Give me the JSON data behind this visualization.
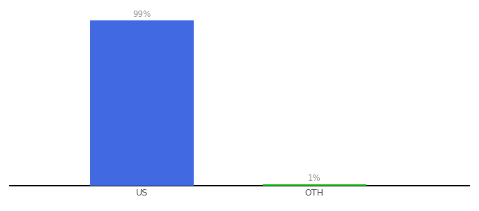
{
  "categories": [
    "US",
    "OTH"
  ],
  "values": [
    99,
    1
  ],
  "bar_colors": [
    "#4169e1",
    "#22cc22"
  ],
  "value_labels": [
    "99%",
    "1%"
  ],
  "background_color": "#ffffff",
  "ylim": [
    0,
    105
  ],
  "bar_width": 0.18,
  "label_fontsize": 8.5,
  "tick_fontsize": 9,
  "axis_line_color": "#111111",
  "x_positions": [
    0.28,
    0.58
  ],
  "xlim": [
    0.05,
    0.85
  ]
}
